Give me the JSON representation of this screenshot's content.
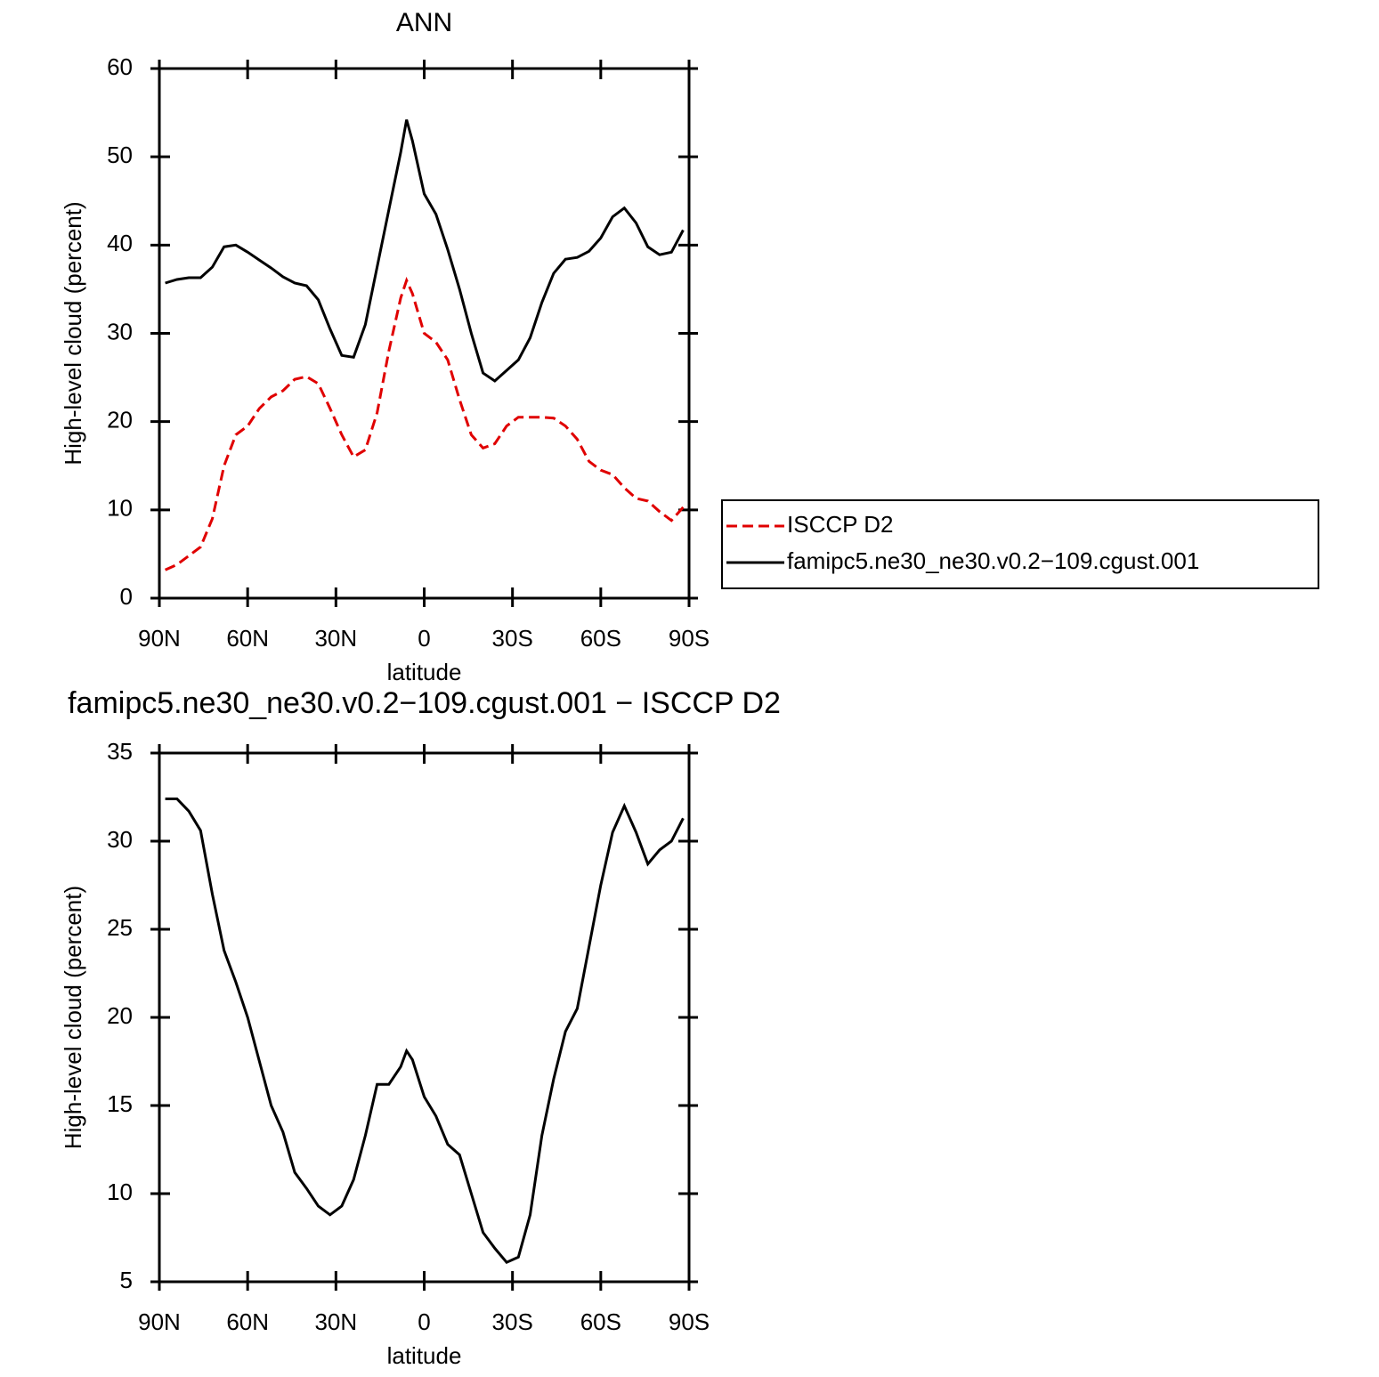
{
  "chart_data": [
    {
      "type": "line",
      "title": "ANN",
      "xlabel": "latitude",
      "ylabel": "High-level cloud (percent)",
      "x": [
        88,
        84,
        80,
        76,
        72,
        68,
        64,
        60,
        56,
        52,
        48,
        44,
        40,
        36,
        32,
        28,
        24,
        20,
        16,
        12,
        8,
        6,
        4,
        0,
        -4,
        -8,
        -12,
        -16,
        -20,
        -24,
        -28,
        -32,
        -36,
        -40,
        -44,
        -48,
        -52,
        -56,
        -60,
        -64,
        -68,
        -72,
        -76,
        -80,
        -84,
        -88
      ],
      "series": [
        {
          "name": "ISCCP D2",
          "color": "#e00000",
          "linestyle": "dashed",
          "values": [
            3.2,
            3.8,
            4.8,
            5.8,
            9,
            15,
            18.5,
            19.5,
            21.5,
            22.8,
            23.5,
            24.8,
            25.1,
            24.3,
            21.5,
            18.5,
            16,
            16.8,
            21,
            28,
            34,
            36,
            34.5,
            30,
            29,
            27,
            22.5,
            18.5,
            17,
            17.5,
            19.5,
            20.5,
            20.5,
            20.5,
            20.4,
            19.5,
            18,
            15.5,
            14.5,
            14,
            12.5,
            11.3,
            11,
            9.8,
            8.8,
            10.3
          ]
        },
        {
          "name": "famipc5.ne30_ne30.v0.2−109.cgust.001",
          "color": "#000000",
          "linestyle": "solid",
          "values": [
            35.7,
            36.1,
            36.3,
            36.3,
            37.5,
            39.8,
            40.0,
            39.2,
            38.3,
            37.4,
            36.4,
            35.7,
            35.4,
            33.8,
            30.5,
            27.5,
            27.3,
            31,
            37.5,
            44,
            50.5,
            54.2,
            51.8,
            45.8,
            43.5,
            39.5,
            35,
            30,
            25.5,
            24.6,
            25.8,
            27,
            29.5,
            33.5,
            36.8,
            38.4,
            38.6,
            39.3,
            40.8,
            43.2,
            44.2,
            42.5,
            39.8,
            38.9,
            39.2,
            41.7
          ]
        }
      ],
      "xlim": [
        90,
        -90
      ],
      "xticks": [
        {
          "value": 90,
          "label": "90N"
        },
        {
          "value": 60,
          "label": "60N"
        },
        {
          "value": 30,
          "label": "30N"
        },
        0,
        {
          "value": -30,
          "label": "30S"
        },
        {
          "value": -60,
          "label": "60S"
        },
        {
          "value": -90,
          "label": "90S"
        }
      ],
      "ylim": [
        0,
        60
      ],
      "yticks": [
        0,
        10,
        20,
        30,
        40,
        50,
        60
      ],
      "legend": "right"
    },
    {
      "type": "line",
      "title": "famipc5.ne30_ne30.v0.2−109.cgust.001 − ISCCP D2",
      "xlabel": "latitude",
      "ylabel": "High-level cloud (percent)",
      "x": [
        88,
        84,
        80,
        76,
        72,
        68,
        64,
        60,
        56,
        52,
        48,
        44,
        40,
        36,
        32,
        28,
        24,
        20,
        16,
        12,
        8,
        6,
        4,
        0,
        -4,
        -8,
        -12,
        -16,
        -20,
        -24,
        -28,
        -32,
        -36,
        -40,
        -44,
        -48,
        -52,
        -56,
        -60,
        -64,
        -68,
        -72,
        -76,
        -80,
        -84,
        -88
      ],
      "series": [
        {
          "color": "#000000",
          "linestyle": "solid",
          "values": [
            32.4,
            32.4,
            31.7,
            30.6,
            27,
            23.8,
            22,
            20,
            17.5,
            15,
            13.5,
            11.2,
            10.3,
            9.3,
            8.8,
            9.3,
            10.8,
            13.3,
            16.2,
            16.2,
            17.2,
            18.1,
            17.6,
            15.5,
            14.4,
            12.8,
            12.2,
            10,
            7.8,
            6.9,
            6.1,
            6.4,
            8.8,
            13.3,
            16.5,
            19.2,
            20.5,
            24,
            27.5,
            30.5,
            32,
            30.5,
            28.7,
            29.5,
            30,
            31.3
          ]
        }
      ],
      "xlim": [
        90,
        -90
      ],
      "xticks": [
        {
          "value": 90,
          "label": "90N"
        },
        {
          "value": 60,
          "label": "60N"
        },
        {
          "value": 30,
          "label": "30N"
        },
        0,
        {
          "value": -30,
          "label": "30S"
        },
        {
          "value": -60,
          "label": "60S"
        },
        {
          "value": -90,
          "label": "90S"
        }
      ],
      "ylim": [
        5,
        35
      ],
      "yticks": [
        5,
        10,
        15,
        20,
        25,
        30,
        35
      ]
    }
  ]
}
